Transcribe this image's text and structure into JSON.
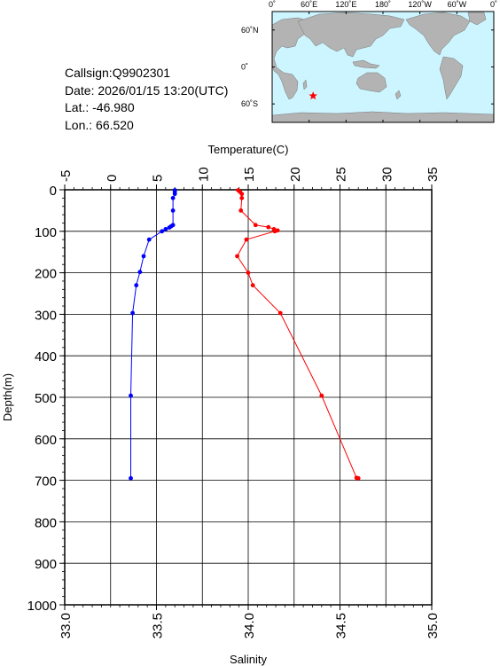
{
  "header": {
    "callsign": "Callsign:Q9902301",
    "date": "Date:  2026/01/15 13:20(UTC)",
    "lat": "Lat.:  -46.980",
    "lon": "Lon.:   66.520"
  },
  "map": {
    "top_labels": [
      "0˚",
      "60˚E",
      "120˚E",
      "180˚",
      "120˚W",
      "60˚W",
      "0˚"
    ],
    "right_labels": [
      "60˚N",
      "0˚",
      "60˚S"
    ],
    "marker": {
      "lon": 66.52,
      "lat": -46.98,
      "color": "#ff0000"
    },
    "ocean_color": "#ccf5ff",
    "land_color": "#b3b3b3"
  },
  "chart_data": {
    "type": "line",
    "title": "",
    "xlabel_top": "Temperature(C)",
    "xlabel_bottom": "Salinity",
    "ylabel": "Depth(m)",
    "temperature_ticks": [
      "-5",
      "0",
      "5",
      "10",
      "15",
      "20",
      "25",
      "30",
      "35"
    ],
    "salinity_ticks": [
      "33.0",
      "33.5",
      "34.0",
      "34.5",
      "35.0"
    ],
    "depth_ticks": [
      "0",
      "100",
      "200",
      "300",
      "400",
      "500",
      "600",
      "700",
      "800",
      "900",
      "1000"
    ],
    "temperature_range": [
      -5,
      35
    ],
    "salinity_range": [
      33.0,
      35.0
    ],
    "depth_range": [
      0,
      1000
    ],
    "grid": true,
    "series": [
      {
        "color": "#ff0000",
        "axis": "temperature",
        "points": [
          {
            "t": 13.9,
            "d": 1
          },
          {
            "t": 14.1,
            "d": 5
          },
          {
            "t": 14.3,
            "d": 10
          },
          {
            "t": 14.3,
            "d": 20
          },
          {
            "t": 14.2,
            "d": 50
          },
          {
            "t": 15.8,
            "d": 85
          },
          {
            "t": 17.2,
            "d": 90
          },
          {
            "t": 17.8,
            "d": 95
          },
          {
            "t": 18.2,
            "d": 98
          },
          {
            "t": 17.9,
            "d": 100
          },
          {
            "t": 14.8,
            "d": 120
          },
          {
            "t": 13.8,
            "d": 160
          },
          {
            "t": 15.0,
            "d": 200
          },
          {
            "t": 15.5,
            "d": 230
          },
          {
            "t": 18.5,
            "d": 297
          },
          {
            "t": 23.0,
            "d": 496
          },
          {
            "t": 26.8,
            "d": 694
          },
          {
            "t": 27.0,
            "d": 695
          }
        ]
      },
      {
        "color": "#0000ff",
        "axis": "salinity",
        "points": [
          {
            "s": 33.6,
            "d": 1
          },
          {
            "s": 33.6,
            "d": 5
          },
          {
            "s": 33.6,
            "d": 10
          },
          {
            "s": 33.59,
            "d": 20
          },
          {
            "s": 33.59,
            "d": 50
          },
          {
            "s": 33.59,
            "d": 85
          },
          {
            "s": 33.58,
            "d": 88
          },
          {
            "s": 33.57,
            "d": 91
          },
          {
            "s": 33.55,
            "d": 95
          },
          {
            "s": 33.53,
            "d": 100
          },
          {
            "s": 33.46,
            "d": 120
          },
          {
            "s": 33.43,
            "d": 160
          },
          {
            "s": 33.41,
            "d": 198
          },
          {
            "s": 33.39,
            "d": 230
          },
          {
            "s": 33.37,
            "d": 297
          },
          {
            "s": 33.36,
            "d": 496
          },
          {
            "s": 33.36,
            "d": 695
          }
        ]
      }
    ]
  }
}
